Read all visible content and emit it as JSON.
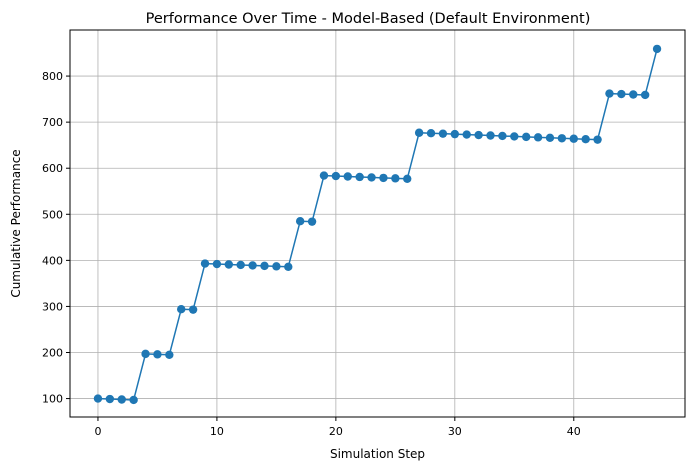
{
  "chart_data": {
    "type": "line",
    "title": "Performance Over Time - Model-Based (Default Environment)",
    "xlabel": "Simulation Step",
    "ylabel": "Cumulative Performance",
    "xlim": [
      -2.35,
      49.35
    ],
    "ylim": [
      60,
      900
    ],
    "xticks": [
      0,
      10,
      20,
      30,
      40
    ],
    "yticks": [
      100,
      200,
      300,
      400,
      500,
      600,
      700,
      800
    ],
    "grid": true,
    "legend": "none",
    "marker": "circle",
    "series": [
      {
        "color": "#1f77b4",
        "x": [
          0,
          1,
          2,
          3,
          4,
          5,
          6,
          7,
          8,
          9,
          10,
          11,
          12,
          13,
          14,
          15,
          16,
          17,
          18,
          19,
          20,
          21,
          22,
          23,
          24,
          25,
          26,
          27,
          28,
          29,
          30,
          31,
          32,
          33,
          34,
          35,
          36,
          37,
          38,
          39,
          40,
          41,
          42,
          43,
          44,
          45,
          46,
          47
        ],
        "y": [
          100,
          99,
          98,
          97,
          197,
          196,
          195,
          294,
          293,
          393,
          392,
          391,
          390,
          389,
          388,
          387,
          386,
          485,
          484,
          584,
          583,
          582,
          581,
          580,
          579,
          578,
          577,
          677,
          676,
          675,
          674,
          673,
          672,
          671,
          670,
          669,
          668,
          667,
          666,
          665,
          664,
          663,
          662,
          762,
          761,
          760,
          759,
          859
        ]
      }
    ]
  }
}
